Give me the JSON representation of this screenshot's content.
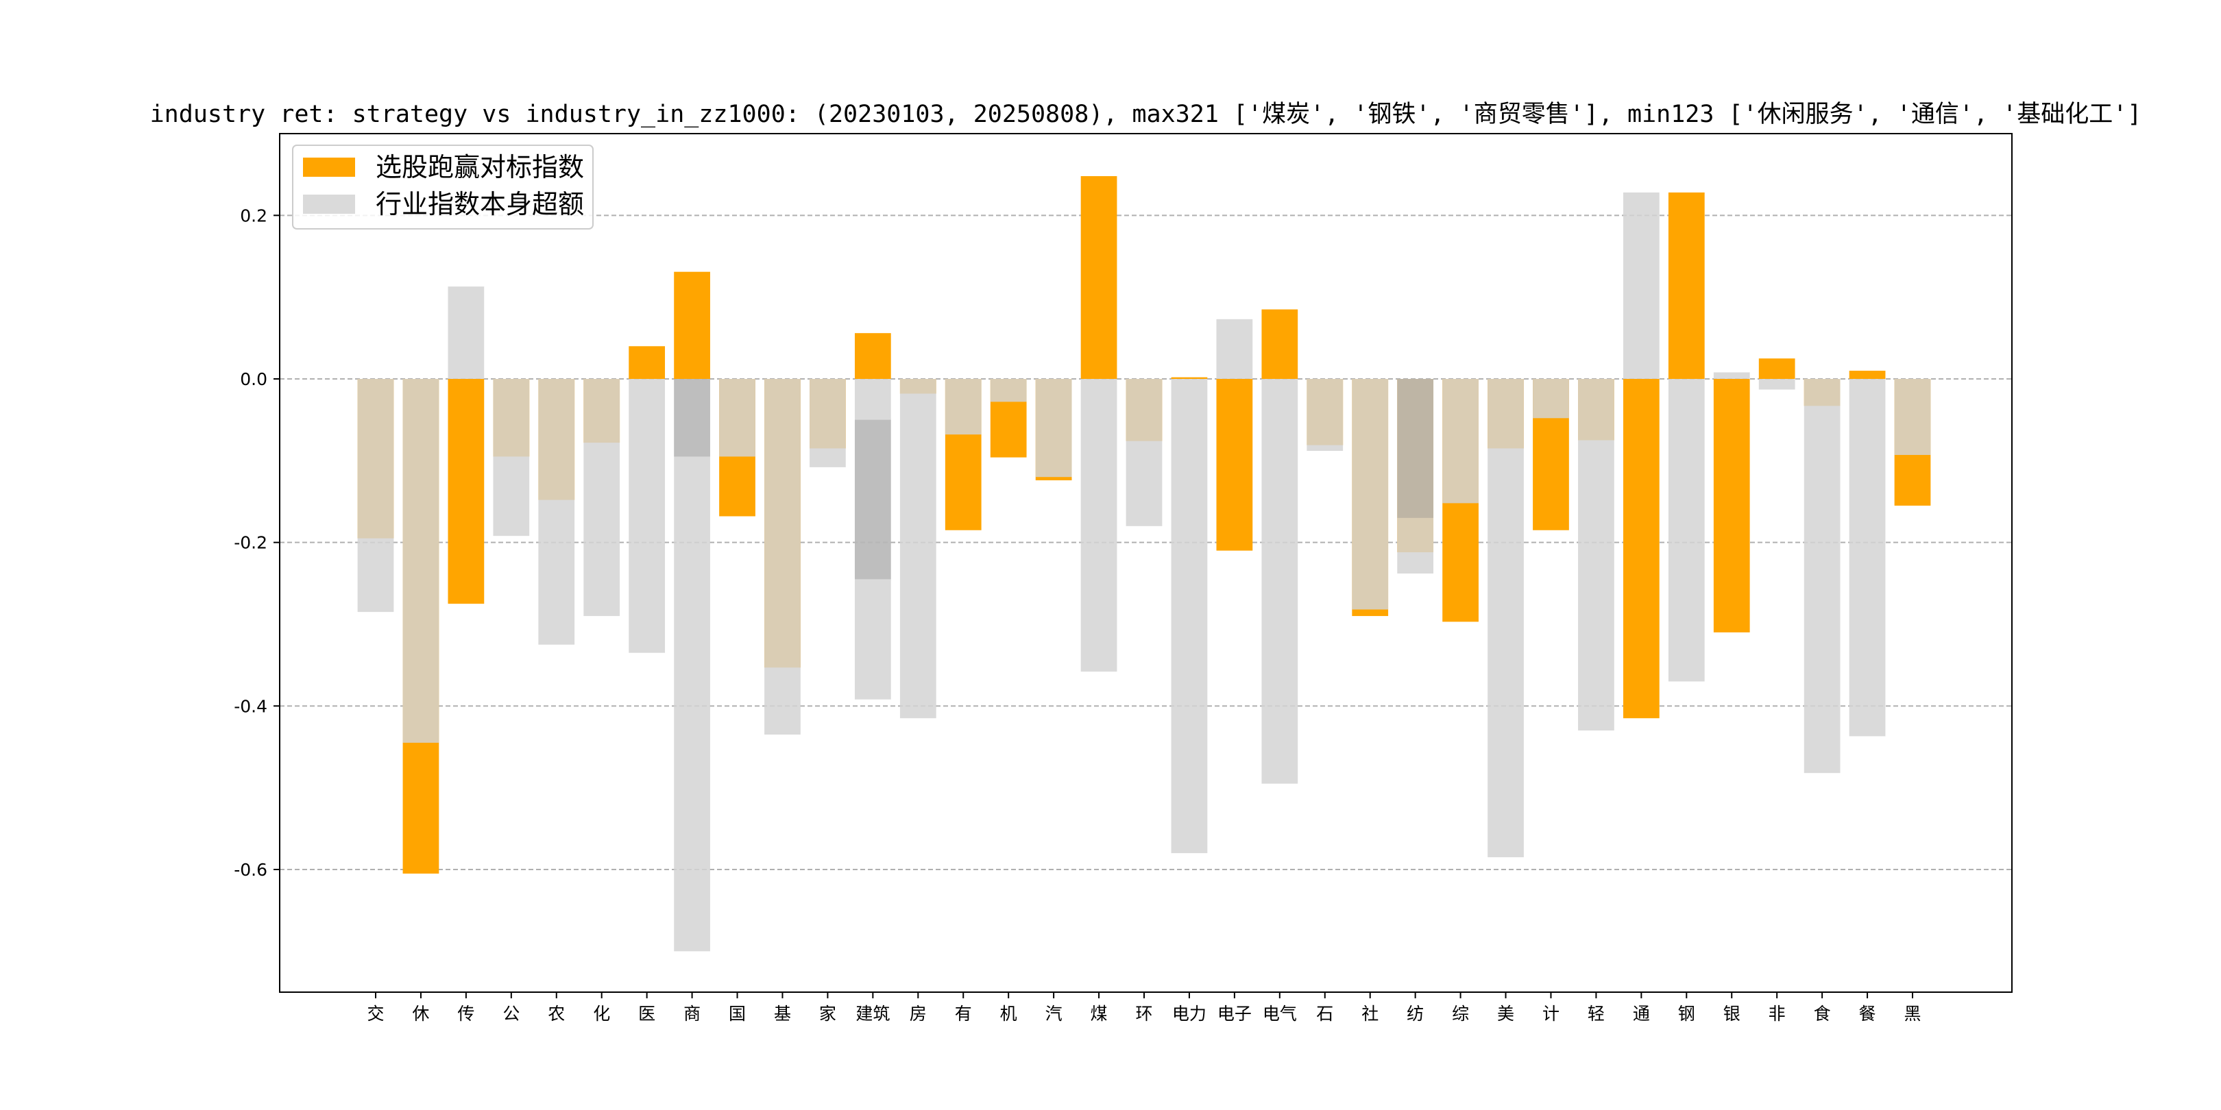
{
  "chart_data": {
    "type": "bar",
    "title": "industry ret: strategy vs industry_in_zz1000: (20230103, 20250808), max321 ['煤炭', '钢铁', '商贸零售'], min123 ['休闲服务', '通信', '基础化工']",
    "xlabel": "",
    "ylabel": "",
    "ylim": [
      -0.75,
      0.3
    ],
    "yticks": [
      -0.6,
      -0.4,
      -0.2,
      0.0,
      0.2
    ],
    "ytick_labels": [
      "-0.6",
      "-0.4",
      "-0.2",
      "0.0",
      "0.2"
    ],
    "grid": "y dashed",
    "legend_position": "top-left",
    "categories": [
      "交",
      "休",
      "传",
      "公",
      "农",
      "化",
      "医",
      "商",
      "国",
      "基",
      "家",
      "建筑",
      "房",
      "有",
      "机",
      "汽",
      "煤",
      "环",
      "电力",
      "电子",
      "电气",
      "石",
      "社",
      "纺",
      "综",
      "美",
      "计",
      "轻",
      "通",
      "钢",
      "银",
      "非",
      "食",
      "餐",
      "黑"
    ],
    "series": [
      {
        "name": "选股跑赢对标指数",
        "color": "#FFA500",
        "alpha": 1.0,
        "values": [
          -0.195,
          -0.605,
          -0.275,
          -0.095,
          -0.148,
          -0.078,
          0.04,
          0.131,
          -0.168,
          -0.353,
          -0.085,
          0.056,
          -0.018,
          -0.185,
          -0.096,
          -0.124,
          0.248,
          -0.076,
          0.002,
          -0.21,
          0.085,
          -0.081,
          -0.29,
          -0.212,
          -0.297,
          -0.085,
          -0.185,
          -0.075,
          -0.415,
          0.228,
          -0.31,
          0.025,
          -0.033,
          0.01,
          -0.155
        ]
      },
      {
        "name": "行业指数本身超额",
        "color": "#D3D3D3",
        "alpha": 0.85,
        "values": [
          -0.285,
          -0.445,
          0.113,
          -0.192,
          -0.325,
          -0.29,
          -0.335,
          -0.7,
          -0.095,
          -0.435,
          -0.108,
          -0.392,
          -0.415,
          -0.068,
          -0.028,
          -0.12,
          -0.358,
          -0.18,
          -0.58,
          0.073,
          -0.495,
          -0.088,
          -0.282,
          -0.238,
          -0.152,
          -0.585,
          -0.048,
          -0.43,
          0.228,
          -0.37,
          0.008,
          -0.013,
          -0.482,
          -0.437,
          -0.093
        ]
      }
    ],
    "overlap_windows": [
      {
        "category": "商",
        "from": 0.0,
        "to": -0.095
      },
      {
        "category": "建筑",
        "from": -0.05,
        "to": -0.245
      },
      {
        "category": "纺",
        "from": 0.0,
        "to": -0.17
      }
    ]
  }
}
